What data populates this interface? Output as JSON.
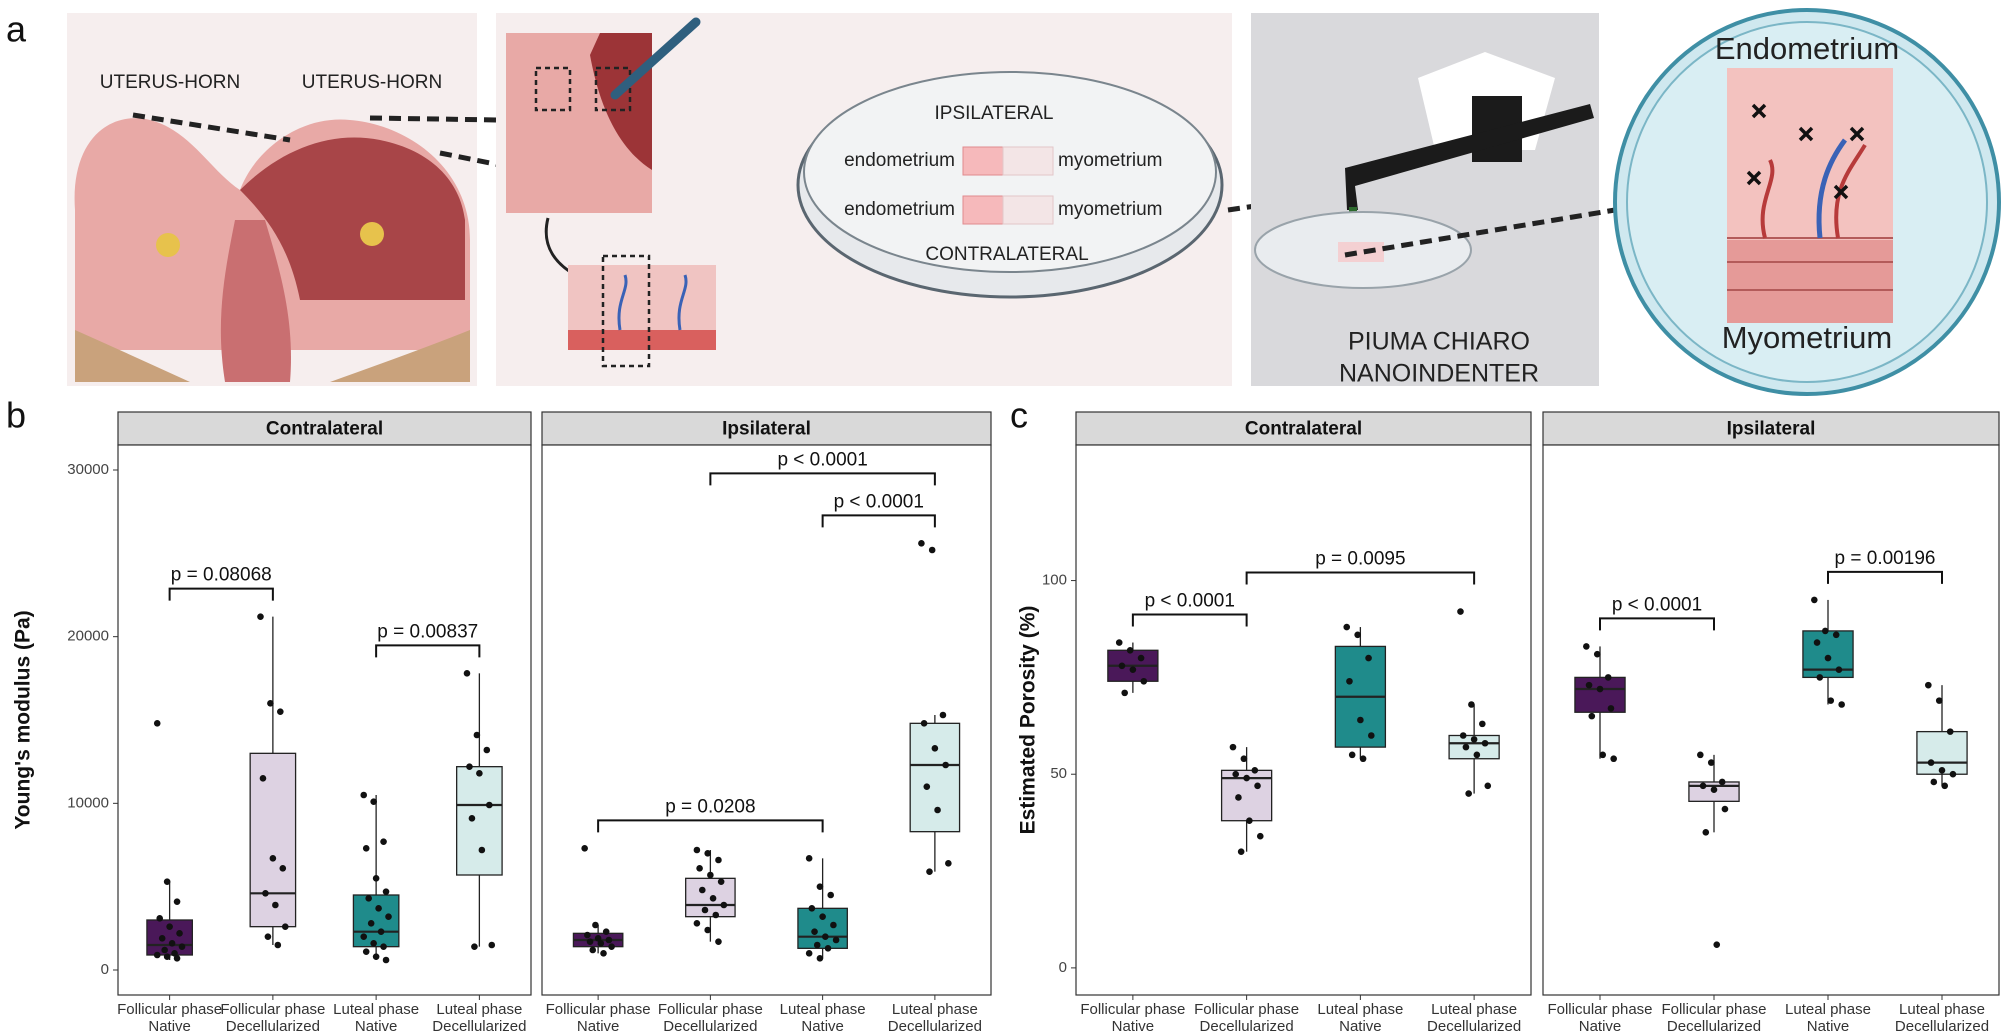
{
  "panel_labels": [
    "a",
    "b",
    "c"
  ],
  "illustration": {
    "uterus_labels": [
      "UTERUS-HORN",
      "UTERUS-HORN"
    ],
    "dish": {
      "top": "IPSILATERAL",
      "bottom": "CONTRALATERAL",
      "rows": [
        [
          "endometrium",
          "myometrium"
        ],
        [
          "endometrium",
          "myometrium"
        ]
      ]
    },
    "instrument": [
      "PIUMA CHIARO",
      "NANOINDENTER"
    ],
    "zoom": {
      "top": "Endometrium",
      "bottom": "Myometrium"
    }
  },
  "chart_data": [
    {
      "type": "box",
      "title": "Contralateral",
      "ylabel": "Young's modulus (Pa)",
      "categories": [
        [
          "Follicular phase",
          "Native"
        ],
        [
          "Follicular phase",
          "Decellularized"
        ],
        [
          "Luteal phase",
          "Native"
        ],
        [
          "Luteal phase",
          "Decellularized"
        ]
      ],
      "colors": [
        "#4a1859",
        "#ddd2e2",
        "#1f8b8b",
        "#d6ebea"
      ],
      "ylim": [
        -1500,
        31500
      ],
      "yticks": [
        0,
        10000,
        20000,
        30000
      ],
      "boxes": [
        {
          "min": 600,
          "q1": 900,
          "median": 1500,
          "q3": 3000,
          "max": 5300,
          "points": [
            14800,
            5300,
            4100,
            3100,
            2600,
            2200,
            1900,
            1600,
            1400,
            1200,
            1000,
            900,
            800,
            700
          ]
        },
        {
          "min": 1500,
          "q1": 2600,
          "median": 4600,
          "q3": 13000,
          "max": 21200,
          "points": [
            21200,
            16000,
            15500,
            11500,
            6700,
            6100,
            4600,
            3900,
            2600,
            2000,
            1500
          ]
        },
        {
          "min": 600,
          "q1": 1400,
          "median": 2300,
          "q3": 4500,
          "max": 10500,
          "points": [
            10500,
            10100,
            7700,
            7300,
            5500,
            4700,
            4300,
            3700,
            3200,
            2800,
            2300,
            2000,
            1600,
            1400,
            1100,
            800,
            600
          ]
        },
        {
          "min": 1400,
          "q1": 5700,
          "median": 9900,
          "q3": 12200,
          "max": 17800,
          "points": [
            17800,
            14100,
            13200,
            12200,
            11800,
            9900,
            9100,
            7200,
            1500,
            1400
          ]
        }
      ],
      "brackets": [
        {
          "from": 0,
          "to": 1,
          "label": "p = 0.08068"
        },
        {
          "from": 2,
          "to": 3,
          "label": "p = 0.00837"
        }
      ]
    },
    {
      "type": "box",
      "title": "Ipsilateral",
      "categories": [
        [
          "Follicular phase",
          "Native"
        ],
        [
          "Follicular phase",
          "Decellularized"
        ],
        [
          "Luteal phase",
          "Native"
        ],
        [
          "Luteal phase",
          "Decellularized"
        ]
      ],
      "colors": [
        "#4a1859",
        "#ddd2e2",
        "#1f8b8b",
        "#d6ebea"
      ],
      "ylim": [
        -1500,
        31500
      ],
      "boxes": [
        {
          "min": 1000,
          "q1": 1400,
          "median": 1800,
          "q3": 2200,
          "max": 2700,
          "points": [
            7300,
            2700,
            2300,
            2100,
            1900,
            1800,
            1700,
            1600,
            1400,
            1200,
            1000
          ]
        },
        {
          "min": 1700,
          "q1": 3200,
          "median": 3900,
          "q3": 5500,
          "max": 7200,
          "points": [
            7200,
            7000,
            6600,
            6100,
            5700,
            5300,
            4800,
            4300,
            3900,
            3600,
            3300,
            2800,
            2400,
            1700
          ]
        },
        {
          "min": 700,
          "q1": 1300,
          "median": 2000,
          "q3": 3700,
          "max": 6700,
          "points": [
            6700,
            5000,
            4500,
            3700,
            3200,
            2700,
            2300,
            2000,
            1800,
            1500,
            1300,
            1000,
            700
          ]
        },
        {
          "min": 5900,
          "q1": 8300,
          "median": 12300,
          "q3": 14800,
          "max": 15300,
          "points": [
            25600,
            25200,
            15300,
            14800,
            13300,
            12300,
            11000,
            9600,
            6400,
            5900
          ]
        }
      ],
      "brackets": [
        {
          "from": 0,
          "to": 2,
          "label": "p  = 0.0208"
        },
        {
          "from": 2,
          "to": 3,
          "label": "p < 0.0001"
        },
        {
          "from": 1,
          "to": 3,
          "label": "p < 0.0001"
        }
      ]
    },
    {
      "type": "box",
      "title": "Contralateral",
      "ylabel": "Estimated Porosity (%)",
      "categories": [
        [
          "Follicular phase",
          "Native"
        ],
        [
          "Follicular phase",
          "Decellularized"
        ],
        [
          "Luteal phase",
          "Native"
        ],
        [
          "Luteal phase",
          "Decellularized"
        ]
      ],
      "colors": [
        "#4a1859",
        "#ddd2e2",
        "#1f8b8b",
        "#d6ebea"
      ],
      "ylim": [
        -7,
        135
      ],
      "yticks": [
        0,
        50,
        100
      ],
      "boxes": [
        {
          "min": 71,
          "q1": 74,
          "median": 78,
          "q3": 82,
          "max": 84,
          "points": [
            84,
            82,
            80,
            78,
            77,
            74,
            71
          ]
        },
        {
          "min": 30,
          "q1": 38,
          "median": 49,
          "q3": 51,
          "max": 57,
          "points": [
            57,
            54,
            51,
            50,
            49,
            47,
            44,
            38,
            34,
            30
          ]
        },
        {
          "min": 54,
          "q1": 57,
          "median": 70,
          "q3": 83,
          "max": 88,
          "points": [
            88,
            86,
            80,
            74,
            64,
            60,
            55,
            54
          ]
        },
        {
          "min": 45,
          "q1": 54,
          "median": 58,
          "q3": 60,
          "max": 68,
          "points": [
            92,
            68,
            63,
            60,
            59,
            58,
            57,
            55,
            47,
            45
          ]
        }
      ],
      "brackets": [
        {
          "from": 0,
          "to": 1,
          "label": "p < 0.0001"
        },
        {
          "from": 1,
          "to": 3,
          "label": "p = 0.0095"
        }
      ]
    },
    {
      "type": "box",
      "title": "Ipsilateral",
      "categories": [
        [
          "Follicular phase",
          "Native"
        ],
        [
          "Follicular phase",
          "Decellularized"
        ],
        [
          "Luteal phase",
          "Native"
        ],
        [
          "Luteal phase",
          "Decellularized"
        ]
      ],
      "colors": [
        "#4a1859",
        "#ddd2e2",
        "#1f8b8b",
        "#d6ebea"
      ],
      "ylim": [
        -7,
        135
      ],
      "boxes": [
        {
          "min": 54,
          "q1": 66,
          "median": 72,
          "q3": 75,
          "max": 83,
          "points": [
            83,
            81,
            75,
            73,
            72,
            67,
            65,
            55,
            54
          ]
        },
        {
          "min": 35,
          "q1": 43,
          "median": 47,
          "q3": 48,
          "max": 55,
          "points": [
            55,
            53,
            48,
            47,
            46,
            41,
            35,
            6
          ]
        },
        {
          "min": 68,
          "q1": 75,
          "median": 77,
          "q3": 87,
          "max": 95,
          "points": [
            95,
            87,
            86,
            84,
            80,
            77,
            75,
            69,
            68
          ]
        },
        {
          "min": 47,
          "q1": 50,
          "median": 53,
          "q3": 61,
          "max": 73,
          "points": [
            73,
            69,
            61,
            53,
            51,
            50,
            48,
            47
          ]
        }
      ],
      "brackets": [
        {
          "from": 0,
          "to": 1,
          "label": "p < 0.0001"
        },
        {
          "from": 2,
          "to": 3,
          "label": "p = 0.00196"
        }
      ]
    }
  ]
}
